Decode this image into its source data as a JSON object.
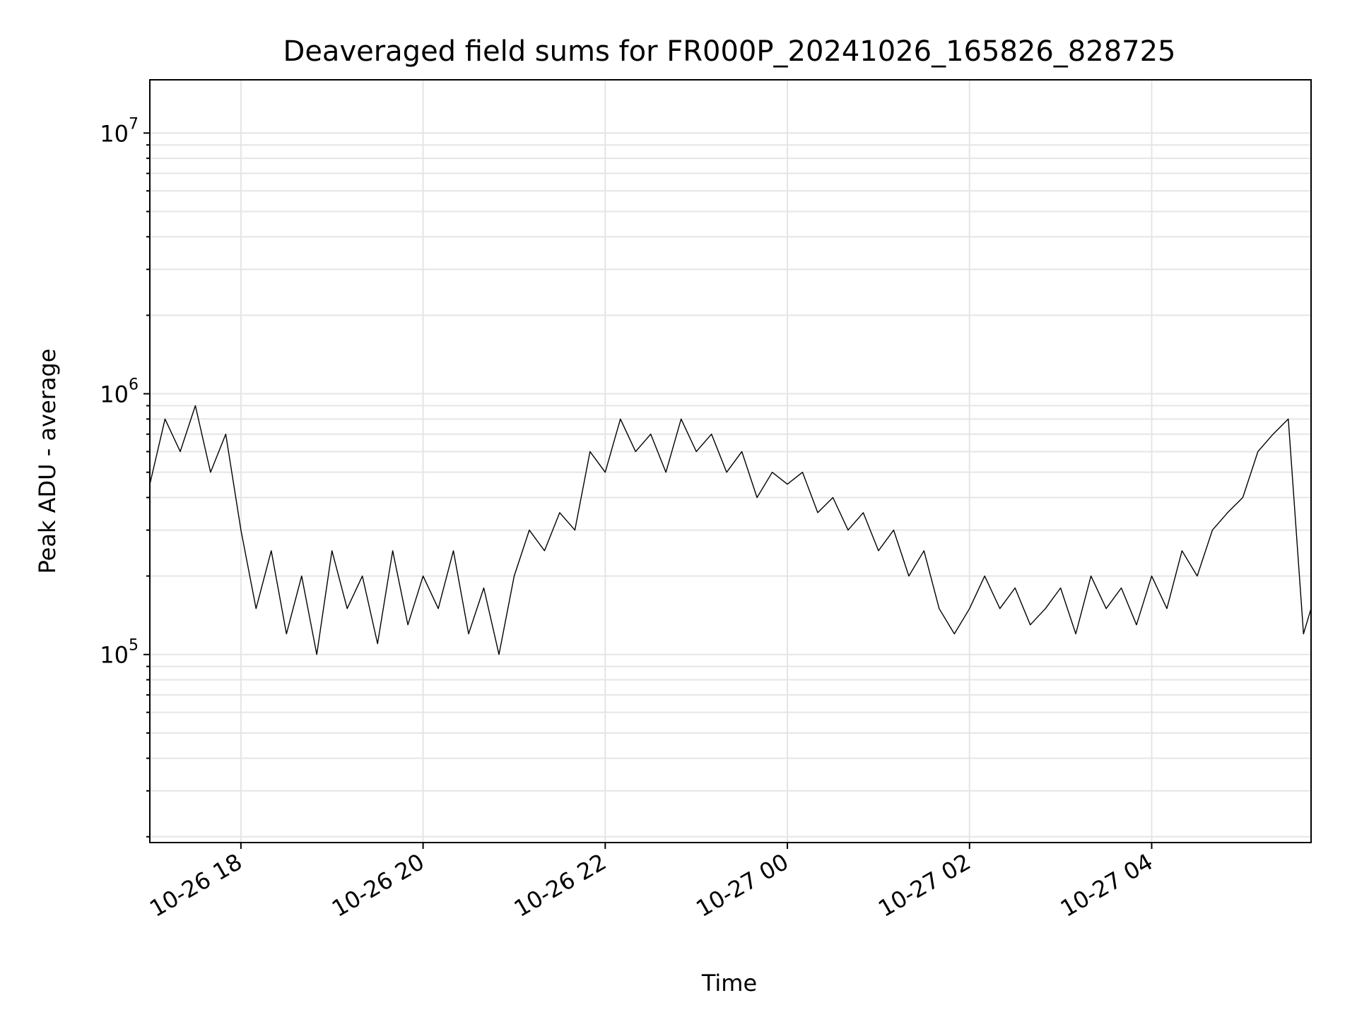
{
  "chart_data": {
    "type": "line",
    "title": "Deaveraged field sums for FR000P_20241026_165826_828725",
    "xlabel": "Time",
    "ylabel": "Peak ADU - average",
    "yscale": "log",
    "ylim": [
      19000,
      16000000
    ],
    "xlim": [
      "2024-10-26 17:00",
      "2024-10-27 05:45"
    ],
    "grid": "on (major and minor)",
    "line_color": "#000000",
    "grid_color": "#e5e5e5",
    "xticks": [
      {
        "value": "2024-10-26 18:00",
        "label": "10-26 18"
      },
      {
        "value": "2024-10-26 20:00",
        "label": "10-26 20"
      },
      {
        "value": "2024-10-26 22:00",
        "label": "10-26 22"
      },
      {
        "value": "2024-10-27 00:00",
        "label": "10-27 00"
      },
      {
        "value": "2024-10-27 02:00",
        "label": "10-27 02"
      },
      {
        "value": "2024-10-27 04:00",
        "label": "10-27 04"
      }
    ],
    "yticks": [
      {
        "value": 100000,
        "base": "10",
        "exp": "5"
      },
      {
        "value": 1000000,
        "base": "10",
        "exp": "6"
      },
      {
        "value": 10000000,
        "base": "10",
        "exp": "7"
      }
    ],
    "series": [
      {
        "points": [
          [
            "2024-10-26 17:00",
            450000
          ],
          [
            "2024-10-26 17:10",
            800000
          ],
          [
            "2024-10-26 17:20",
            600000
          ],
          [
            "2024-10-26 17:30",
            900000
          ],
          [
            "2024-10-26 17:40",
            500000
          ],
          [
            "2024-10-26 17:50",
            700000
          ],
          [
            "2024-10-26 18:00",
            300000
          ],
          [
            "2024-10-26 18:10",
            150000
          ],
          [
            "2024-10-26 18:20",
            250000
          ],
          [
            "2024-10-26 18:30",
            120000
          ],
          [
            "2024-10-26 18:40",
            200000
          ],
          [
            "2024-10-26 18:50",
            100000
          ],
          [
            "2024-10-26 19:00",
            250000
          ],
          [
            "2024-10-26 19:10",
            150000
          ],
          [
            "2024-10-26 19:20",
            200000
          ],
          [
            "2024-10-26 19:30",
            110000
          ],
          [
            "2024-10-26 19:40",
            250000
          ],
          [
            "2024-10-26 19:50",
            130000
          ],
          [
            "2024-10-26 20:00",
            200000
          ],
          [
            "2024-10-26 20:10",
            150000
          ],
          [
            "2024-10-26 20:20",
            250000
          ],
          [
            "2024-10-26 20:30",
            120000
          ],
          [
            "2024-10-26 20:40",
            180000
          ],
          [
            "2024-10-26 20:50",
            100000
          ],
          [
            "2024-10-26 21:00",
            200000
          ],
          [
            "2024-10-26 21:10",
            300000
          ],
          [
            "2024-10-26 21:20",
            250000
          ],
          [
            "2024-10-26 21:30",
            350000
          ],
          [
            "2024-10-26 21:40",
            300000
          ],
          [
            "2024-10-26 21:50",
            600000
          ],
          [
            "2024-10-26 22:00",
            500000
          ],
          [
            "2024-10-26 22:10",
            800000
          ],
          [
            "2024-10-26 22:20",
            600000
          ],
          [
            "2024-10-26 22:30",
            700000
          ],
          [
            "2024-10-26 22:40",
            500000
          ],
          [
            "2024-10-26 22:50",
            800000
          ],
          [
            "2024-10-26 23:00",
            600000
          ],
          [
            "2024-10-26 23:10",
            700000
          ],
          [
            "2024-10-26 23:20",
            500000
          ],
          [
            "2024-10-26 23:30",
            600000
          ],
          [
            "2024-10-26 23:40",
            400000
          ],
          [
            "2024-10-26 23:50",
            500000
          ],
          [
            "2024-10-27 00:00",
            450000
          ],
          [
            "2024-10-27 00:10",
            500000
          ],
          [
            "2024-10-27 00:20",
            350000
          ],
          [
            "2024-10-27 00:30",
            400000
          ],
          [
            "2024-10-27 00:40",
            300000
          ],
          [
            "2024-10-27 00:50",
            350000
          ],
          [
            "2024-10-27 01:00",
            250000
          ],
          [
            "2024-10-27 01:10",
            300000
          ],
          [
            "2024-10-27 01:20",
            200000
          ],
          [
            "2024-10-27 01:30",
            250000
          ],
          [
            "2024-10-27 01:40",
            150000
          ],
          [
            "2024-10-27 01:50",
            120000
          ],
          [
            "2024-10-27 02:00",
            150000
          ],
          [
            "2024-10-27 02:10",
            200000
          ],
          [
            "2024-10-27 02:20",
            150000
          ],
          [
            "2024-10-27 02:30",
            180000
          ],
          [
            "2024-10-27 02:40",
            130000
          ],
          [
            "2024-10-27 02:50",
            150000
          ],
          [
            "2024-10-27 03:00",
            180000
          ],
          [
            "2024-10-27 03:10",
            120000
          ],
          [
            "2024-10-27 03:20",
            200000
          ],
          [
            "2024-10-27 03:30",
            150000
          ],
          [
            "2024-10-27 03:40",
            180000
          ],
          [
            "2024-10-27 03:50",
            130000
          ],
          [
            "2024-10-27 04:00",
            200000
          ],
          [
            "2024-10-27 04:10",
            150000
          ],
          [
            "2024-10-27 04:20",
            250000
          ],
          [
            "2024-10-27 04:30",
            200000
          ],
          [
            "2024-10-27 04:40",
            300000
          ],
          [
            "2024-10-27 04:50",
            350000
          ],
          [
            "2024-10-27 05:00",
            400000
          ],
          [
            "2024-10-27 05:10",
            600000
          ],
          [
            "2024-10-27 05:20",
            700000
          ],
          [
            "2024-10-27 05:30",
            800000
          ],
          [
            "2024-10-27 05:40",
            120000
          ],
          [
            "2024-10-27 05:45",
            150000
          ]
        ]
      }
    ]
  }
}
